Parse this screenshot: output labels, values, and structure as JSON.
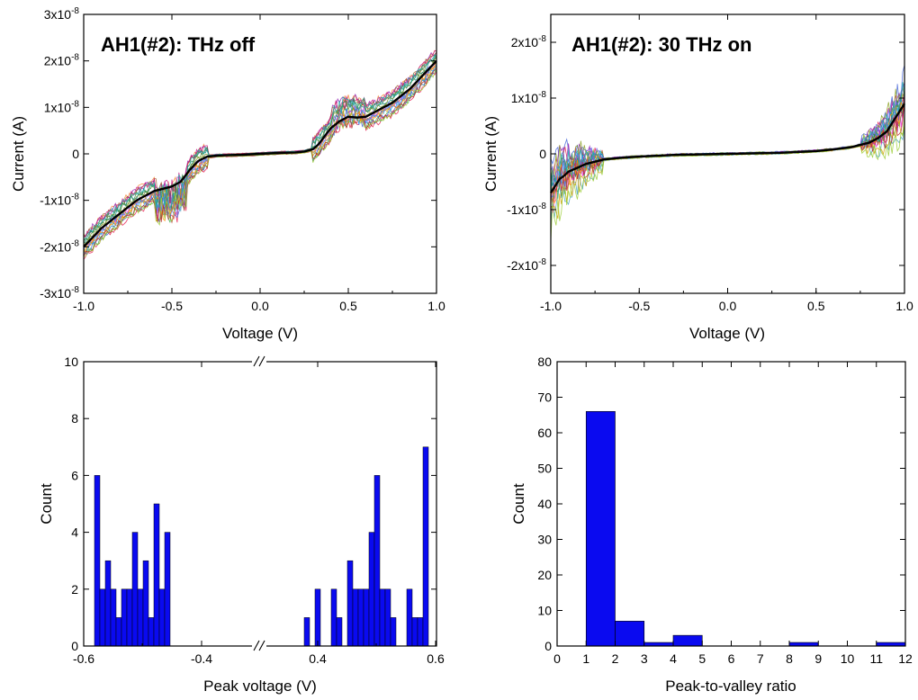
{
  "chart_data": [
    {
      "type": "line",
      "title": "AH1(#2): THz off",
      "xlabel": "Voltage (V)",
      "ylabel": "Current (A)",
      "xlim": [
        -1.0,
        1.0
      ],
      "ylim": [
        -3e-08,
        3e-08
      ],
      "xticks": [
        "-1.0",
        "-0.5",
        "0.0",
        "0.5",
        "1.0"
      ],
      "yticks": [
        "-3x10-8",
        "-2x10-8",
        "-1x10-8",
        "0",
        "1x10-8",
        "2x10-8",
        "3x10-8"
      ],
      "series": [
        {
          "role": "average",
          "color": "#000000",
          "x": [
            -1.0,
            -0.95,
            -0.9,
            -0.85,
            -0.8,
            -0.75,
            -0.7,
            -0.65,
            -0.6,
            -0.55,
            -0.5,
            -0.45,
            -0.4,
            -0.35,
            -0.3,
            -0.25,
            -0.2,
            -0.1,
            0.0,
            0.1,
            0.2,
            0.25,
            0.3,
            0.33,
            0.36,
            0.4,
            0.45,
            0.5,
            0.55,
            0.6,
            0.65,
            0.7,
            0.75,
            0.8,
            0.85,
            0.9,
            0.95,
            1.0
          ],
          "y": [
            -2e-08,
            -1.8e-08,
            -1.6e-08,
            -1.45e-08,
            -1.3e-08,
            -1.15e-08,
            -1e-08,
            -9e-09,
            -8e-09,
            -7.5e-09,
            -7e-09,
            -6e-09,
            -3.5e-09,
            -1.5e-09,
            -6e-10,
            -4e-10,
            -3e-10,
            -2e-10,
            0.0,
            2e-10,
            3e-10,
            5e-10,
            1e-09,
            2e-09,
            3.5e-09,
            5.5e-09,
            7e-09,
            8e-09,
            7.8e-09,
            8e-09,
            9e-09,
            1e-08,
            1.1e-08,
            1.25e-08,
            1.4e-08,
            1.6e-08,
            1.8e-08,
            2e-08
          ]
        }
      ]
    },
    {
      "type": "line",
      "title": "AH1(#2): 30 THz on",
      "xlabel": "Voltage (V)",
      "ylabel": "Current (A)",
      "xlim": [
        -1.0,
        1.0
      ],
      "ylim": [
        -2.5e-08,
        2.5e-08
      ],
      "xticks": [
        "-1.0",
        "-0.5",
        "0.0",
        "0.5",
        "1.0"
      ],
      "yticks": [
        "-2x10-8",
        "-1x10-8",
        "0",
        "1x10-8",
        "2x10-8"
      ],
      "series": [
        {
          "role": "average",
          "color": "#000000",
          "x": [
            -1.0,
            -0.97,
            -0.95,
            -0.92,
            -0.9,
            -0.85,
            -0.8,
            -0.75,
            -0.7,
            -0.6,
            -0.5,
            -0.3,
            0.0,
            0.3,
            0.5,
            0.6,
            0.7,
            0.75,
            0.8,
            0.85,
            0.9,
            0.93,
            0.96,
            1.0
          ],
          "y": [
            -7e-09,
            -5.5e-09,
            -4.5e-09,
            -3.8e-09,
            -3.2e-09,
            -2.5e-09,
            -1.8e-09,
            -1.4e-09,
            -1e-09,
            -7e-10,
            -5e-10,
            -2e-10,
            0.0,
            2e-10,
            5e-10,
            8e-10,
            1.2e-09,
            1.6e-09,
            2e-09,
            2.8e-09,
            4e-09,
            5.5e-09,
            7e-09,
            9e-09
          ]
        }
      ]
    },
    {
      "type": "bar",
      "xlabel": "Peak voltage (V)",
      "ylabel": "Count",
      "ylim": [
        0,
        10
      ],
      "yticks": [
        "0",
        "2",
        "4",
        "6",
        "8",
        "10"
      ],
      "xticks": [
        "-0.6",
        "-0.4",
        "0.4",
        "0.6"
      ],
      "axis_break": true,
      "bar_color": "#0a0af0",
      "left_values": [
        6,
        2,
        3,
        2,
        1,
        2,
        2,
        4,
        2,
        3,
        1,
        5,
        2,
        4
      ],
      "right_values": [
        1,
        0,
        2,
        0,
        0,
        2,
        1,
        0,
        3,
        2,
        2,
        2,
        4,
        6,
        2,
        2,
        1,
        0,
        0,
        2,
        1,
        1,
        7
      ]
    },
    {
      "type": "bar",
      "xlabel": "Peak-to-valley ratio",
      "ylabel": "Count",
      "xlim": [
        0,
        12
      ],
      "ylim": [
        0,
        80
      ],
      "xticks": [
        "0",
        "1",
        "2",
        "3",
        "4",
        "5",
        "6",
        "7",
        "8",
        "9",
        "10",
        "11",
        "12"
      ],
      "yticks": [
        "0",
        "10",
        "20",
        "30",
        "40",
        "50",
        "60",
        "70",
        "80"
      ],
      "bar_color": "#0a0af0",
      "bins": [
        [
          1,
          2
        ],
        [
          2,
          3
        ],
        [
          3,
          4
        ],
        [
          4,
          5
        ],
        [
          8,
          9
        ],
        [
          11,
          12
        ]
      ],
      "values": [
        66,
        7,
        1,
        3,
        1,
        1
      ]
    }
  ]
}
